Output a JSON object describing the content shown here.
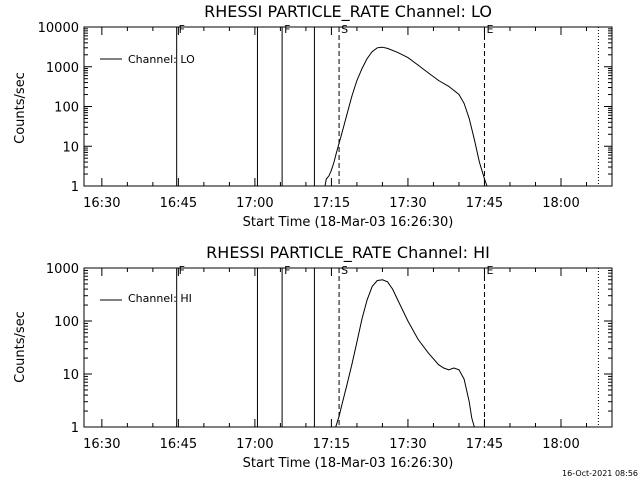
{
  "timestamp": "16-Oct-2021 08:56",
  "chart_data": [
    {
      "type": "line",
      "title": "RHESSI PARTICLE_RATE Channel: LO",
      "xlabel": "Start Time (18-Mar-03 16:26:30)",
      "ylabel": "Counts/sec",
      "yscale": "log",
      "ylim": [
        1,
        10000
      ],
      "yticks": [
        1,
        10,
        100,
        1000,
        10000
      ],
      "ytick_labels": [
        "1",
        "10",
        "100",
        "1000",
        "10000"
      ],
      "xlim": [
        "16:26:30",
        "18:10:00"
      ],
      "xticks": [
        "16:30",
        "16:45",
        "17:00",
        "17:15",
        "17:30",
        "17:45",
        "18:00"
      ],
      "legend": {
        "position": "top-left",
        "label": "Channel: LO"
      },
      "markers": [
        {
          "time": "16:44:40",
          "style": "solid",
          "label": "F"
        },
        {
          "time": "17:00:30",
          "style": "solid",
          "label": ""
        },
        {
          "time": "17:05:20",
          "style": "solid",
          "label": "F"
        },
        {
          "time": "17:11:40",
          "style": "solid",
          "label": ""
        },
        {
          "time": "17:16:30",
          "style": "dashed",
          "label": "S"
        },
        {
          "time": "17:45:00",
          "style": "dashed",
          "label": "E"
        },
        {
          "time": "18:07:20",
          "style": "dotted",
          "label": ""
        }
      ],
      "series": [
        {
          "x": [
            "17:13:45",
            "17:14:00",
            "17:14:30",
            "17:15:00",
            "17:15:30",
            "17:16:00",
            "17:16:30",
            "17:17:00",
            "17:18:00",
            "17:19:00",
            "17:20:00",
            "17:21:00",
            "17:22:00",
            "17:23:00",
            "17:24:00",
            "17:25:00",
            "17:26:00",
            "17:28:00",
            "17:30:00",
            "17:32:00",
            "17:34:00",
            "17:36:00",
            "17:38:00",
            "17:40:00",
            "17:41:00",
            "17:42:00",
            "17:43:00",
            "17:44:00",
            "17:45:00",
            "17:45:30"
          ],
          "y": [
            1,
            1.5,
            1.8,
            2.5,
            4,
            7,
            12,
            20,
            60,
            180,
            450,
            900,
            1600,
            2400,
            3000,
            3100,
            2900,
            2300,
            1700,
            1100,
            700,
            450,
            320,
            200,
            120,
            50,
            15,
            4,
            1.5,
            1
          ]
        }
      ]
    },
    {
      "type": "line",
      "title": "RHESSI PARTICLE_RATE Channel: HI",
      "xlabel": "Start Time (18-Mar-03 16:26:30)",
      "ylabel": "Counts/sec",
      "yscale": "log",
      "ylim": [
        1,
        1000
      ],
      "yticks": [
        1,
        10,
        100,
        1000
      ],
      "ytick_labels": [
        "1",
        "10",
        "100",
        "1000"
      ],
      "xlim": [
        "16:26:30",
        "18:10:00"
      ],
      "xticks": [
        "16:30",
        "16:45",
        "17:00",
        "17:15",
        "17:30",
        "17:45",
        "18:00"
      ],
      "legend": {
        "position": "top-left",
        "label": "Channel: HI"
      },
      "markers": [
        {
          "time": "16:44:40",
          "style": "solid",
          "label": "F"
        },
        {
          "time": "17:00:30",
          "style": "solid",
          "label": ""
        },
        {
          "time": "17:05:20",
          "style": "solid",
          "label": "F"
        },
        {
          "time": "17:11:40",
          "style": "solid",
          "label": ""
        },
        {
          "time": "17:16:30",
          "style": "dashed",
          "label": "S"
        },
        {
          "time": "17:45:00",
          "style": "dashed",
          "label": "E"
        },
        {
          "time": "18:07:20",
          "style": "dotted",
          "label": ""
        }
      ],
      "series": [
        {
          "x": [
            "17:15:50",
            "17:16:30",
            "17:17:00",
            "17:18:00",
            "17:19:00",
            "17:20:00",
            "17:21:00",
            "17:22:00",
            "17:23:00",
            "17:24:00",
            "17:25:00",
            "17:26:00",
            "17:27:00",
            "17:28:00",
            "17:30:00",
            "17:32:00",
            "17:34:00",
            "17:36:00",
            "17:37:00",
            "17:38:00",
            "17:39:00",
            "17:40:00",
            "17:41:00",
            "17:42:00",
            "17:42:30",
            "17:43:00"
          ],
          "y": [
            1,
            1.6,
            2.5,
            6,
            15,
            40,
            110,
            250,
            450,
            580,
            600,
            550,
            400,
            250,
            100,
            45,
            25,
            15,
            13,
            12,
            13,
            12,
            8,
            3,
            1.5,
            1
          ]
        }
      ]
    }
  ]
}
